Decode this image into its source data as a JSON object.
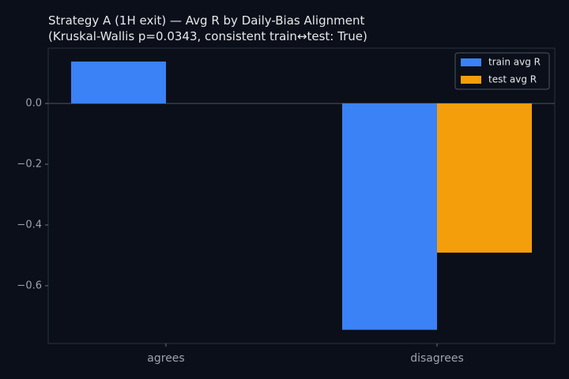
{
  "chart_data": {
    "type": "bar",
    "title": "Strategy A (1H exit) — Avg R by Daily-Bias Alignment\n(Kruskal-Wallis p=0.0343, consistent train↔test: True)",
    "categories": [
      "agrees",
      "disagrees"
    ],
    "series": [
      {
        "name": "train avg R",
        "color": "#3b82f6",
        "values": [
          0.138,
          -0.745
        ]
      },
      {
        "name": "test avg R",
        "color": "#f59e0b",
        "values": [
          null,
          -0.491
        ]
      }
    ],
    "ylim": [
      -0.79,
      0.182
    ],
    "yticks": [
      {
        "value": 0,
        "label": "0.0"
      },
      {
        "value": -0.2,
        "label": "−0.2"
      },
      {
        "value": -0.4,
        "label": "−0.4"
      },
      {
        "value": -0.6,
        "label": "−0.6"
      }
    ],
    "grid": false,
    "legend": "upper right"
  }
}
